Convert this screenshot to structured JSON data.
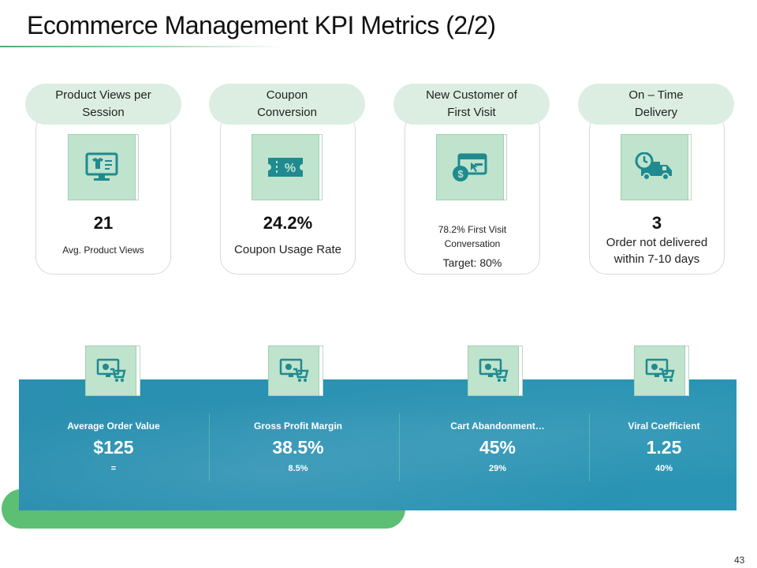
{
  "title": "Ecommerce Management KPI Metrics (2/2)",
  "kpis": [
    {
      "label": "Product Views per\nSession",
      "icon": "monitor-shirt-icon",
      "value": "21",
      "sub": "Avg. Product Views"
    },
    {
      "label": "Coupon\nConversion",
      "icon": "coupon-percent-icon",
      "value": "24.2%",
      "sub": "Coupon Usage Rate"
    },
    {
      "label": "New Customer of\nFirst Visit",
      "icon": "browser-dollar-icon",
      "sub": "78.2% First Visit\nConversation",
      "target": "Target: 80%"
    },
    {
      "label": "On – Time\nDelivery",
      "icon": "delivery-truck-clock-icon",
      "value": "3",
      "sub": "Order not delivered\nwithin 7-10 days"
    }
  ],
  "metrics": [
    {
      "label": "Average Order Value",
      "value": "$125",
      "sub": "=",
      "icon": "monitor-cart-icon"
    },
    {
      "label": "Gross Profit Margin",
      "value": "38.5%",
      "sub": "8.5%",
      "icon": "monitor-cart-icon"
    },
    {
      "label": "Cart Abandonment…",
      "value": "45%",
      "sub": "29%",
      "icon": "monitor-cart-icon"
    },
    {
      "label": "Viral Coefficient",
      "value": "1.25",
      "sub": "40%",
      "icon": "monitor-cart-icon"
    }
  ],
  "page_number": "43",
  "colors": {
    "accent_green": "#5cbf74",
    "pill_green": "#dceee2",
    "icon_green": "#bfe3cc",
    "icon_dark": "#1f8a8f",
    "band_blue": "#2a8fb0"
  }
}
